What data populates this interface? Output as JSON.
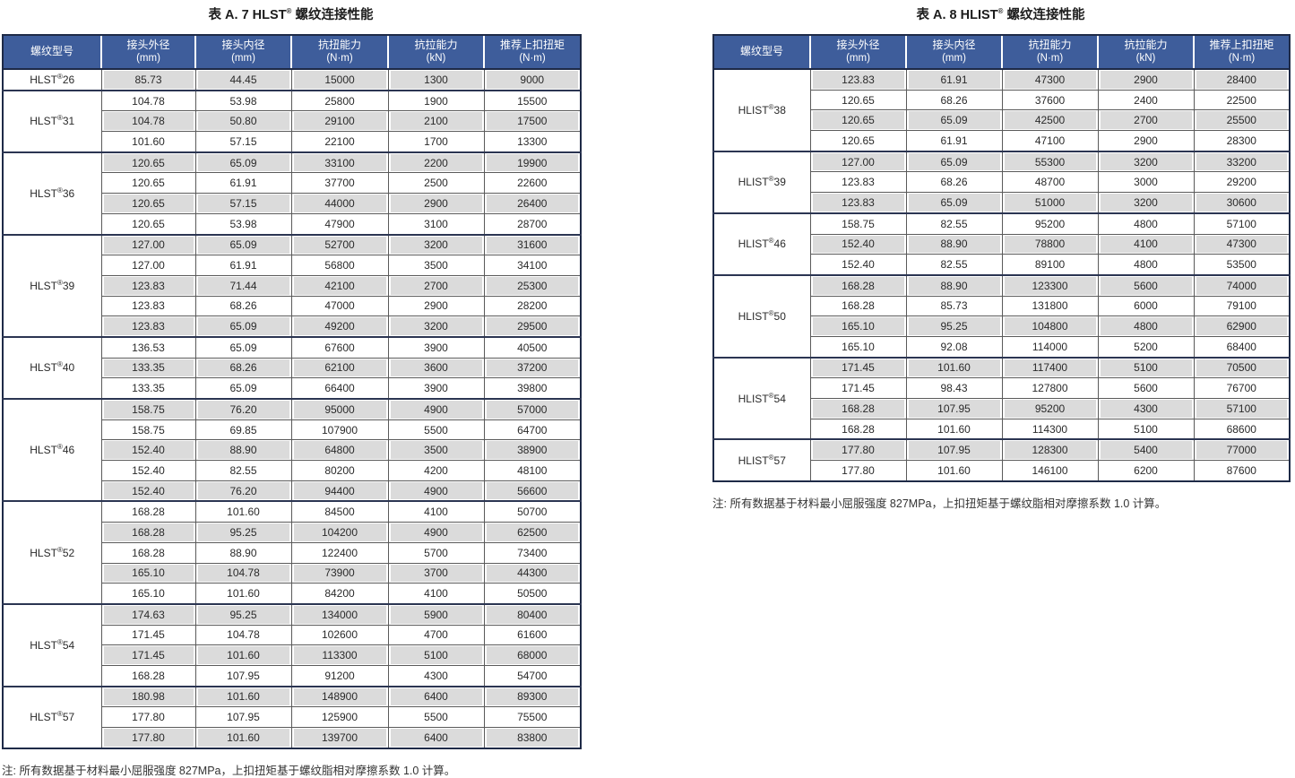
{
  "colors": {
    "header_bg": "#3e5d9b",
    "dark_border": "#1e2a47",
    "row_gray": "#dbdbdb",
    "row_white": "#ffffff",
    "header_text": "#ffffff",
    "body_text": "#2e2e2e"
  },
  "tables": [
    {
      "title": "表 A. 7 HLST® 螺纹连接性能",
      "columns": [
        {
          "label": "螺纹型号",
          "unit": ""
        },
        {
          "label": "接头外径",
          "unit": "(mm)"
        },
        {
          "label": "接头内径",
          "unit": "(mm)"
        },
        {
          "label": "抗扭能力",
          "unit": "(N·m)"
        },
        {
          "label": "抗拉能力",
          "unit": "(kN)"
        },
        {
          "label": "推荐上扣扭矩",
          "unit": "(N·m)"
        }
      ],
      "groups": [
        {
          "model": "HLST®26",
          "rows": [
            [
              "85.73",
              "44.45",
              "15000",
              "1300",
              "9000"
            ]
          ]
        },
        {
          "model": "HLST®31",
          "rows": [
            [
              "104.78",
              "53.98",
              "25800",
              "1900",
              "15500"
            ],
            [
              "104.78",
              "50.80",
              "29100",
              "2100",
              "17500"
            ],
            [
              "101.60",
              "57.15",
              "22100",
              "1700",
              "13300"
            ]
          ]
        },
        {
          "model": "HLST®36",
          "rows": [
            [
              "120.65",
              "65.09",
              "33100",
              "2200",
              "19900"
            ],
            [
              "120.65",
              "61.91",
              "37700",
              "2500",
              "22600"
            ],
            [
              "120.65",
              "57.15",
              "44000",
              "2900",
              "26400"
            ],
            [
              "120.65",
              "53.98",
              "47900",
              "3100",
              "28700"
            ]
          ]
        },
        {
          "model": "HLST®39",
          "rows": [
            [
              "127.00",
              "65.09",
              "52700",
              "3200",
              "31600"
            ],
            [
              "127.00",
              "61.91",
              "56800",
              "3500",
              "34100"
            ],
            [
              "123.83",
              "71.44",
              "42100",
              "2700",
              "25300"
            ],
            [
              "123.83",
              "68.26",
              "47000",
              "2900",
              "28200"
            ],
            [
              "123.83",
              "65.09",
              "49200",
              "3200",
              "29500"
            ]
          ]
        },
        {
          "model": "HLST®40",
          "rows": [
            [
              "136.53",
              "65.09",
              "67600",
              "3900",
              "40500"
            ],
            [
              "133.35",
              "68.26",
              "62100",
              "3600",
              "37200"
            ],
            [
              "133.35",
              "65.09",
              "66400",
              "3900",
              "39800"
            ]
          ]
        },
        {
          "model": "HLST®46",
          "rows": [
            [
              "158.75",
              "76.20",
              "95000",
              "4900",
              "57000"
            ],
            [
              "158.75",
              "69.85",
              "107900",
              "5500",
              "64700"
            ],
            [
              "152.40",
              "88.90",
              "64800",
              "3500",
              "38900"
            ],
            [
              "152.40",
              "82.55",
              "80200",
              "4200",
              "48100"
            ],
            [
              "152.40",
              "76.20",
              "94400",
              "4900",
              "56600"
            ]
          ]
        },
        {
          "model": "HLST®52",
          "rows": [
            [
              "168.28",
              "101.60",
              "84500",
              "4100",
              "50700"
            ],
            [
              "168.28",
              "95.25",
              "104200",
              "4900",
              "62500"
            ],
            [
              "168.28",
              "88.90",
              "122400",
              "5700",
              "73400"
            ],
            [
              "165.10",
              "104.78",
              "73900",
              "3700",
              "44300"
            ],
            [
              "165.10",
              "101.60",
              "84200",
              "4100",
              "50500"
            ]
          ]
        },
        {
          "model": "HLST®54",
          "rows": [
            [
              "174.63",
              "95.25",
              "134000",
              "5900",
              "80400"
            ],
            [
              "171.45",
              "104.78",
              "102600",
              "4700",
              "61600"
            ],
            [
              "171.45",
              "101.60",
              "113300",
              "5100",
              "68000"
            ],
            [
              "168.28",
              "107.95",
              "91200",
              "4300",
              "54700"
            ]
          ]
        },
        {
          "model": "HLST®57",
          "rows": [
            [
              "180.98",
              "101.60",
              "148900",
              "6400",
              "89300"
            ],
            [
              "177.80",
              "107.95",
              "125900",
              "5500",
              "75500"
            ],
            [
              "177.80",
              "101.60",
              "139700",
              "6400",
              "83800"
            ]
          ]
        }
      ],
      "note": "注: 所有数据基于材料最小屈服强度 827MPa，上扣扭矩基于螺纹脂相对摩擦系数 1.0 计算。"
    },
    {
      "title": "表 A. 8 HLIST® 螺纹连接性能",
      "columns": [
        {
          "label": "螺纹型号",
          "unit": ""
        },
        {
          "label": "接头外径",
          "unit": "(mm)"
        },
        {
          "label": "接头内径",
          "unit": "(mm)"
        },
        {
          "label": "抗扭能力",
          "unit": "(N·m)"
        },
        {
          "label": "抗拉能力",
          "unit": "(kN)"
        },
        {
          "label": "推荐上扣扭矩",
          "unit": "(N·m)"
        }
      ],
      "groups": [
        {
          "model": "HLIST®38",
          "rows": [
            [
              "123.83",
              "61.91",
              "47300",
              "2900",
              "28400"
            ],
            [
              "120.65",
              "68.26",
              "37600",
              "2400",
              "22500"
            ],
            [
              "120.65",
              "65.09",
              "42500",
              "2700",
              "25500"
            ],
            [
              "120.65",
              "61.91",
              "47100",
              "2900",
              "28300"
            ]
          ]
        },
        {
          "model": "HLIST®39",
          "rows": [
            [
              "127.00",
              "65.09",
              "55300",
              "3200",
              "33200"
            ],
            [
              "123.83",
              "68.26",
              "48700",
              "3000",
              "29200"
            ],
            [
              "123.83",
              "65.09",
              "51000",
              "3200",
              "30600"
            ]
          ]
        },
        {
          "model": "HLIST®46",
          "rows": [
            [
              "158.75",
              "82.55",
              "95200",
              "4800",
              "57100"
            ],
            [
              "152.40",
              "88.90",
              "78800",
              "4100",
              "47300"
            ],
            [
              "152.40",
              "82.55",
              "89100",
              "4800",
              "53500"
            ]
          ]
        },
        {
          "model": "HLIST®50",
          "rows": [
            [
              "168.28",
              "88.90",
              "123300",
              "5600",
              "74000"
            ],
            [
              "168.28",
              "85.73",
              "131800",
              "6000",
              "79100"
            ],
            [
              "165.10",
              "95.25",
              "104800",
              "4800",
              "62900"
            ],
            [
              "165.10",
              "92.08",
              "114000",
              "5200",
              "68400"
            ]
          ]
        },
        {
          "model": "HLIST®54",
          "rows": [
            [
              "171.45",
              "101.60",
              "117400",
              "5100",
              "70500"
            ],
            [
              "171.45",
              "98.43",
              "127800",
              "5600",
              "76700"
            ],
            [
              "168.28",
              "107.95",
              "95200",
              "4300",
              "57100"
            ],
            [
              "168.28",
              "101.60",
              "114300",
              "5100",
              "68600"
            ]
          ]
        },
        {
          "model": "HLIST®57",
          "rows": [
            [
              "177.80",
              "107.95",
              "128300",
              "5400",
              "77000"
            ],
            [
              "177.80",
              "101.60",
              "146100",
              "6200",
              "87600"
            ]
          ]
        }
      ],
      "note": "注: 所有数据基于材料最小屈服强度 827MPa，上扣扭矩基于螺纹脂相对摩擦系数 1.0 计算。"
    }
  ]
}
